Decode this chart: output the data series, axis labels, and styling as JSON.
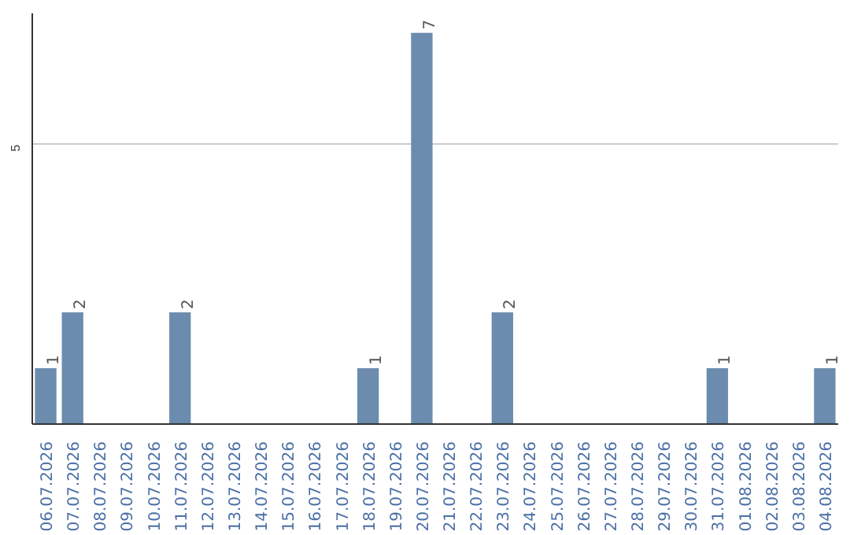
{
  "chart_data": {
    "type": "bar",
    "categories": [
      "06.07.2026",
      "07.07.2026",
      "08.07.2026",
      "09.07.2026",
      "10.07.2026",
      "11.07.2026",
      "12.07.2026",
      "13.07.2026",
      "14.07.2026",
      "15.07.2026",
      "16.07.2026",
      "17.07.2026",
      "18.07.2026",
      "19.07.2026",
      "20.07.2026",
      "21.07.2026",
      "22.07.2026",
      "23.07.2026",
      "24.07.2026",
      "25.07.2026",
      "26.07.2026",
      "27.07.2026",
      "28.07.2026",
      "29.07.2026",
      "30.07.2026",
      "31.07.2026",
      "01.08.2026",
      "02.08.2026",
      "03.08.2026",
      "04.08.2026"
    ],
    "values": [
      1,
      2,
      0,
      0,
      0,
      2,
      0,
      0,
      0,
      0,
      0,
      0,
      1,
      0,
      7,
      0,
      0,
      2,
      0,
      0,
      0,
      0,
      0,
      0,
      0,
      1,
      0,
      0,
      0,
      1
    ],
    "value_labels": [
      "1",
      "2",
      null,
      null,
      null,
      "2",
      null,
      null,
      null,
      null,
      null,
      null,
      "1",
      null,
      "7",
      null,
      null,
      "2",
      null,
      null,
      null,
      null,
      null,
      null,
      null,
      "1",
      null,
      null,
      null,
      "1"
    ],
    "color": "#6b8cae",
    "ylim": [
      0,
      7.35
    ],
    "yticks": [
      5
    ],
    "grid": "y"
  }
}
